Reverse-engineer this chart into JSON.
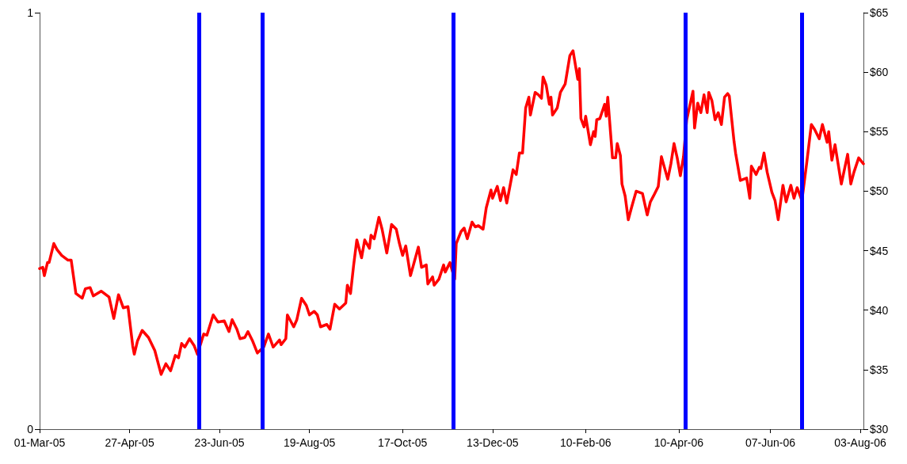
{
  "chart_data": {
    "type": "line",
    "x": [
      "2005-03-01",
      "2005-03-03",
      "2005-03-04",
      "2005-03-06",
      "2005-03-07",
      "2005-03-10",
      "2005-03-12",
      "2005-03-15",
      "2005-03-19",
      "2005-03-21",
      "2005-03-24",
      "2005-03-28",
      "2005-03-30",
      "2005-04-02",
      "2005-04-04",
      "2005-04-09",
      "2005-04-12",
      "2005-04-14",
      "2005-04-17",
      "2005-04-20",
      "2005-04-23",
      "2005-04-26",
      "2005-04-29",
      "2005-04-30",
      "2005-05-02",
      "2005-05-05",
      "2005-05-09",
      "2005-05-13",
      "2005-05-17",
      "2005-05-20",
      "2005-05-23",
      "2005-05-26",
      "2005-05-28",
      "2005-05-30",
      "2005-06-01",
      "2005-06-04",
      "2005-06-07",
      "2005-06-09",
      "2005-06-13",
      "2005-06-15",
      "2005-06-19",
      "2005-06-22",
      "2005-06-26",
      "2005-06-29",
      "2005-07-01",
      "2005-07-04",
      "2005-07-06",
      "2005-07-09",
      "2005-07-11",
      "2005-07-14",
      "2005-07-17",
      "2005-07-21",
      "2005-07-24",
      "2005-07-27",
      "2005-07-31",
      "2005-08-01",
      "2005-08-04",
      "2005-08-05",
      "2005-08-09",
      "2005-08-11",
      "2005-08-14",
      "2005-08-17",
      "2005-08-19",
      "2005-08-22",
      "2005-08-24",
      "2005-08-26",
      "2005-08-30",
      "2005-09-01",
      "2005-09-04",
      "2005-09-07",
      "2005-09-11",
      "2005-09-12",
      "2005-09-14",
      "2005-09-16",
      "2005-09-18",
      "2005-09-21",
      "2005-09-23",
      "2005-09-26",
      "2005-09-27",
      "2005-09-29",
      "2005-10-02",
      "2005-10-04",
      "2005-10-07",
      "2005-10-10",
      "2005-10-13",
      "2005-10-15",
      "2005-10-17",
      "2005-10-19",
      "2005-10-22",
      "2005-10-27",
      "2005-10-29",
      "2005-11-01",
      "2005-11-02",
      "2005-11-05",
      "2005-11-06",
      "2005-11-09",
      "2005-11-12",
      "2005-11-13",
      "2005-11-16",
      "2005-11-19",
      "2005-11-20",
      "2005-11-23",
      "2005-11-25",
      "2005-11-27",
      "2005-11-30",
      "2005-12-02",
      "2005-12-04",
      "2005-12-07",
      "2005-12-09",
      "2005-12-12",
      "2005-12-13",
      "2005-12-16",
      "2005-12-18",
      "2005-12-20",
      "2005-12-22",
      "2005-12-26",
      "2005-12-28",
      "2005-12-30",
      "2006-01-01",
      "2006-01-03",
      "2006-01-05",
      "2006-01-06",
      "2006-01-09",
      "2006-01-11",
      "2006-01-13",
      "2006-01-14",
      "2006-01-16",
      "2006-01-18",
      "2006-01-19",
      "2006-01-20",
      "2006-01-23",
      "2006-01-25",
      "2006-01-28",
      "2006-01-31",
      "2006-02-02",
      "2006-02-03",
      "2006-02-05",
      "2006-02-06",
      "2006-02-07",
      "2006-02-09",
      "2006-02-10",
      "2006-02-13",
      "2006-02-15",
      "2006-02-16",
      "2006-02-17",
      "2006-02-19",
      "2006-02-22",
      "2006-02-23",
      "2006-02-24",
      "2006-02-27",
      "2006-03-01",
      "2006-03-02",
      "2006-03-04",
      "2006-03-05",
      "2006-03-07",
      "2006-03-09",
      "2006-03-11",
      "2006-03-14",
      "2006-03-18",
      "2006-03-21",
      "2006-03-23",
      "2006-03-25",
      "2006-03-28",
      "2006-03-30",
      "2006-04-03",
      "2006-04-05",
      "2006-04-07",
      "2006-04-09",
      "2006-04-11",
      "2006-04-13",
      "2006-04-15",
      "2006-04-19",
      "2006-04-20",
      "2006-04-22",
      "2006-04-24",
      "2006-04-26",
      "2006-04-28",
      "2006-04-29",
      "2006-05-01",
      "2006-05-03",
      "2006-05-05",
      "2006-05-07",
      "2006-05-09",
      "2006-05-11",
      "2006-05-12",
      "2006-05-15",
      "2006-05-16",
      "2006-05-19",
      "2006-05-21",
      "2006-05-23",
      "2006-05-25",
      "2006-05-26",
      "2006-05-29",
      "2006-05-31",
      "2006-06-01",
      "2006-06-03",
      "2006-06-05",
      "2006-06-08",
      "2006-06-10",
      "2006-06-12",
      "2006-06-15",
      "2006-06-17",
      "2006-06-20",
      "2006-06-22",
      "2006-06-24",
      "2006-06-27",
      "2006-06-30",
      "2006-07-03",
      "2006-07-05",
      "2006-07-08",
      "2006-07-10",
      "2006-07-13",
      "2006-07-14",
      "2006-07-16",
      "2006-07-18",
      "2006-07-22",
      "2006-07-26",
      "2006-07-28",
      "2006-07-30",
      "2006-08-02",
      "2006-08-05"
    ],
    "series": [
      {
        "color": "#ff0000",
        "axis": "y2",
        "values": [
          43.5,
          43.6,
          42.9,
          44.0,
          44.0,
          45.6,
          45.1,
          44.6,
          44.2,
          44.2,
          41.4,
          41.0,
          41.8,
          41.9,
          41.2,
          41.6,
          41.3,
          41.1,
          39.3,
          41.3,
          40.2,
          40.3,
          37.0,
          36.3,
          37.4,
          38.3,
          37.7,
          36.6,
          34.6,
          35.5,
          34.9,
          36.2,
          36.0,
          37.2,
          36.9,
          37.6,
          37.0,
          36.3,
          38.0,
          37.9,
          39.6,
          39.0,
          39.1,
          38.2,
          39.2,
          38.4,
          37.6,
          37.7,
          38.2,
          37.4,
          36.4,
          36.9,
          38.0,
          36.9,
          37.5,
          37.1,
          37.6,
          39.6,
          38.6,
          39.2,
          41.0,
          40.4,
          39.6,
          39.9,
          39.6,
          38.6,
          38.8,
          38.4,
          40.5,
          40.1,
          40.6,
          42.1,
          41.4,
          43.8,
          45.9,
          44.4,
          45.9,
          45.2,
          46.3,
          46.0,
          47.8,
          46.8,
          44.8,
          47.2,
          46.8,
          45.6,
          44.6,
          45.4,
          42.9,
          45.3,
          43.6,
          43.8,
          42.2,
          42.8,
          42.1,
          42.6,
          43.8,
          43.2,
          44.0,
          42.6,
          45.6,
          46.6,
          46.9,
          46.0,
          47.4,
          47.0,
          47.1,
          46.8,
          48.6,
          50.1,
          49.4,
          50.4,
          49.2,
          50.3,
          49.0,
          51.8,
          51.4,
          53.2,
          53.2,
          57.0,
          57.9,
          56.4,
          58.3,
          58.1,
          57.8,
          59.6,
          58.9,
          57.3,
          57.9,
          56.4,
          57.0,
          58.3,
          59.0,
          61.4,
          61.8,
          61.0,
          59.4,
          60.3,
          56.1,
          55.4,
          56.3,
          53.9,
          55.0,
          54.6,
          56.0,
          56.1,
          57.3,
          56.3,
          57.9,
          52.8,
          52.8,
          54.0,
          53.0,
          50.6,
          49.6,
          47.6,
          48.6,
          50.0,
          49.8,
          48.0,
          49.1,
          49.6,
          50.4,
          52.9,
          51.0,
          52.3,
          54.0,
          52.8,
          51.3,
          52.9,
          56.0,
          58.4,
          55.3,
          57.4,
          56.6,
          58.1,
          56.6,
          58.3,
          57.6,
          56.0,
          56.6,
          55.6,
          57.9,
          58.2,
          58.0,
          54.2,
          53.2,
          50.9,
          51.0,
          51.1,
          49.4,
          52.1,
          51.4,
          52.0,
          51.9,
          53.2,
          51.6,
          49.9,
          49.2,
          47.6,
          50.5,
          49.1,
          50.5,
          49.4,
          50.3,
          49.2,
          52.3,
          55.6,
          55.2,
          54.4,
          55.6,
          54.1,
          55.0,
          52.6,
          53.9,
          50.6,
          53.1,
          50.6,
          51.6,
          52.8,
          52.3
        ]
      }
    ],
    "xlim": [
      "2005-03-01",
      "2006-08-05"
    ],
    "xticks": [
      {
        "value": "2005-03-01",
        "label": "01-Mar-05"
      },
      {
        "value": "2005-04-27",
        "label": "27-Apr-05"
      },
      {
        "value": "2005-06-23",
        "label": "23-Jun-05"
      },
      {
        "value": "2005-08-19",
        "label": "19-Aug-05"
      },
      {
        "value": "2005-10-17",
        "label": "17-Oct-05"
      },
      {
        "value": "2005-12-13",
        "label": "13-Dec-05"
      },
      {
        "value": "2006-02-10",
        "label": "10-Feb-06"
      },
      {
        "value": "2006-04-10",
        "label": "10-Apr-06"
      },
      {
        "value": "2006-06-07",
        "label": "07-Jun-06"
      },
      {
        "value": "2006-08-03",
        "label": "03-Aug-06"
      }
    ],
    "ylim": [
      0,
      1
    ],
    "yticks": [
      0,
      1
    ],
    "y2lim": [
      30,
      65
    ],
    "y2ticks": [
      {
        "value": 30,
        "label": "$30"
      },
      {
        "value": 35,
        "label": "$35"
      },
      {
        "value": 40,
        "label": "$40"
      },
      {
        "value": 45,
        "label": "$45"
      },
      {
        "value": 50,
        "label": "$50"
      },
      {
        "value": 55,
        "label": "$55"
      },
      {
        "value": 60,
        "label": "$60"
      },
      {
        "value": 65,
        "label": "$65"
      }
    ],
    "ref_lines": [
      {
        "axis": "x",
        "value": "2005-06-10",
        "color": "#0000ff"
      },
      {
        "axis": "x",
        "value": "2005-07-20",
        "color": "#0000ff"
      },
      {
        "axis": "x",
        "value": "2005-11-18",
        "color": "#0000ff"
      },
      {
        "axis": "x",
        "value": "2006-04-14",
        "color": "#0000ff"
      },
      {
        "axis": "x",
        "value": "2006-06-27",
        "color": "#0000ff"
      }
    ],
    "grid": false,
    "marker": "none",
    "line_style": "solid"
  }
}
